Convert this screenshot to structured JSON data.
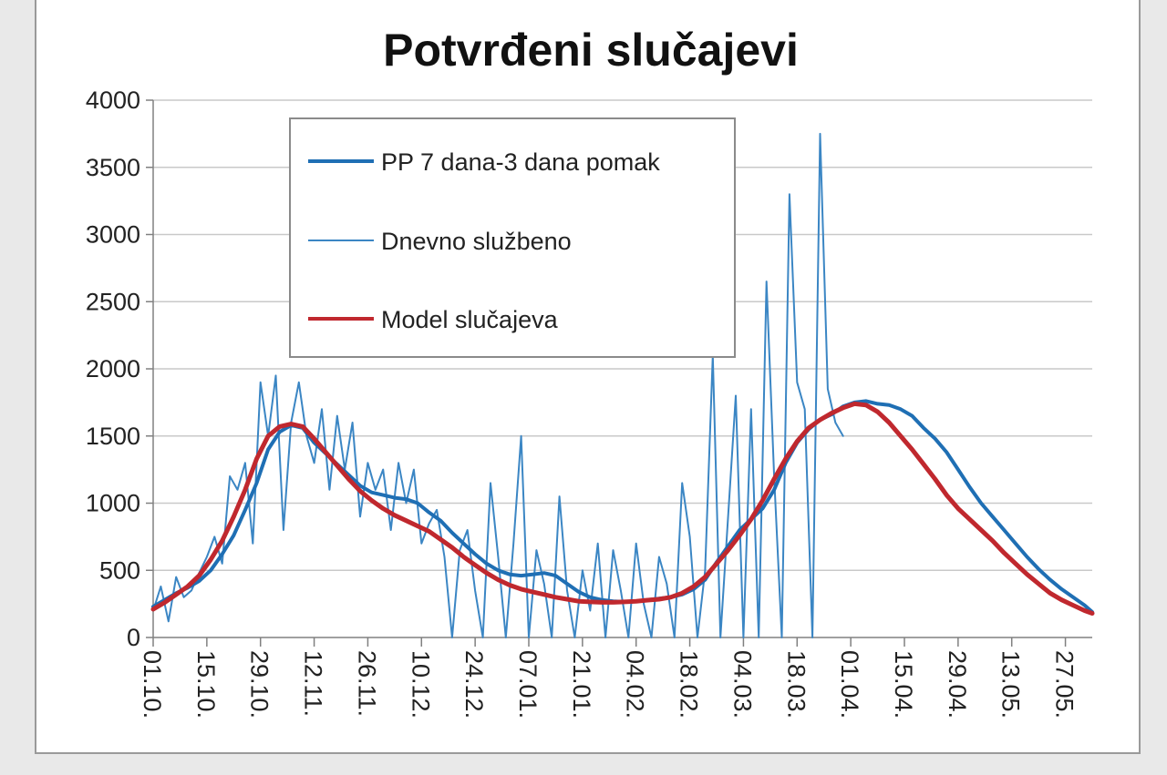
{
  "chart_data": {
    "type": "line",
    "title": "Potvrđeni slučajevi",
    "xlabel": "",
    "ylabel": "",
    "ylim": [
      0,
      4000
    ],
    "yticks": [
      0,
      500,
      1000,
      1500,
      2000,
      2500,
      3000,
      3500,
      4000
    ],
    "xticks": [
      "01.10.",
      "15.10.",
      "29.10.",
      "12.11.",
      "26.11.",
      "10.12.",
      "24.12.",
      "07.01.",
      "21.01.",
      "04.02.",
      "18.02.",
      "04.03.",
      "18.03.",
      "01.04.",
      "15.04.",
      "29.04.",
      "13.05.",
      "27.05."
    ],
    "x_range_days": [
      0,
      245
    ],
    "grid": true,
    "legend_position": "top-left (inside plot)",
    "series": [
      {
        "name": "PP 7 dana-3 dana pomak",
        "color": "#1f6fb4",
        "x": [
          0,
          3,
          6,
          9,
          12,
          15,
          18,
          21,
          24,
          27,
          30,
          33,
          36,
          39,
          42,
          45,
          48,
          51,
          54,
          57,
          60,
          63,
          66,
          69,
          72,
          75,
          78,
          81,
          84,
          87,
          90,
          93,
          96,
          99,
          102,
          105,
          108,
          111,
          114,
          117,
          120,
          123,
          126,
          129,
          132,
          135,
          138,
          141,
          144,
          147,
          150,
          153,
          156,
          159,
          162,
          165,
          168,
          171,
          174,
          177,
          180,
          183,
          186,
          189,
          192,
          195,
          198,
          201,
          204,
          207,
          210,
          213,
          216,
          219,
          222,
          225,
          228,
          231,
          234,
          237,
          240,
          243,
          245
        ],
        "y": [
          230,
          280,
          330,
          370,
          420,
          500,
          620,
          760,
          950,
          1150,
          1400,
          1530,
          1580,
          1560,
          1450,
          1370,
          1290,
          1210,
          1130,
          1080,
          1060,
          1040,
          1030,
          1000,
          930,
          870,
          780,
          700,
          620,
          550,
          500,
          470,
          460,
          470,
          480,
          460,
          400,
          340,
          300,
          280,
          270,
          265,
          270,
          280,
          290,
          300,
          320,
          360,
          430,
          560,
          680,
          800,
          880,
          960,
          1100,
          1300,
          1450,
          1550,
          1620,
          1660,
          1720,
          1750,
          1760,
          1740,
          1730,
          1700,
          1650,
          1560,
          1480,
          1380,
          1250,
          1120,
          1000,
          900,
          800,
          700,
          600,
          510,
          430,
          360,
          300,
          240,
          190
        ]
      },
      {
        "name": "Dnevno službeno",
        "color": "#3b86c4",
        "x": [
          0,
          2,
          4,
          6,
          8,
          10,
          12,
          14,
          16,
          18,
          20,
          22,
          24,
          26,
          28,
          30,
          32,
          34,
          36,
          38,
          40,
          42,
          44,
          46,
          48,
          50,
          52,
          54,
          56,
          58,
          60,
          62,
          64,
          66,
          68,
          70,
          72,
          74,
          76,
          78,
          80,
          82,
          84,
          86,
          88,
          90,
          92,
          94,
          96,
          98,
          100,
          102,
          104,
          106,
          108,
          110,
          112,
          114,
          116,
          118,
          120,
          122,
          124,
          126,
          128,
          130,
          132,
          134,
          136,
          138,
          140,
          142,
          144,
          146,
          148,
          150,
          152,
          154,
          156,
          158,
          160,
          162,
          164,
          166,
          168,
          170,
          172,
          174,
          176,
          178,
          180
        ],
        "y": [
          200,
          380,
          120,
          450,
          300,
          350,
          480,
          600,
          750,
          550,
          1200,
          1100,
          1300,
          700,
          1900,
          1500,
          1950,
          800,
          1600,
          1900,
          1500,
          1300,
          1700,
          1100,
          1650,
          1250,
          1600,
          900,
          1300,
          1100,
          1250,
          800,
          1300,
          1000,
          1250,
          700,
          850,
          950,
          600,
          0,
          650,
          800,
          350,
          0,
          1150,
          600,
          0,
          700,
          1500,
          0,
          650,
          400,
          0,
          1050,
          350,
          0,
          500,
          200,
          700,
          0,
          650,
          350,
          0,
          700,
          250,
          0,
          600,
          400,
          0,
          1150,
          750,
          0,
          500,
          2100,
          0,
          900,
          1800,
          0,
          1700,
          0,
          2650,
          1200,
          0,
          3300,
          1900,
          1700,
          0,
          3750,
          1850,
          1600,
          1500
        ]
      },
      {
        "name": "Model slučajeva",
        "color": "#c0282e",
        "x": [
          0,
          3,
          6,
          9,
          12,
          15,
          18,
          21,
          24,
          27,
          30,
          33,
          36,
          39,
          42,
          45,
          48,
          51,
          54,
          57,
          60,
          63,
          66,
          69,
          72,
          75,
          78,
          81,
          84,
          87,
          90,
          93,
          96,
          99,
          102,
          105,
          108,
          111,
          114,
          117,
          120,
          123,
          126,
          129,
          132,
          135,
          138,
          141,
          144,
          147,
          150,
          153,
          156,
          159,
          162,
          165,
          168,
          171,
          174,
          177,
          180,
          183,
          186,
          189,
          192,
          195,
          198,
          201,
          204,
          207,
          210,
          213,
          216,
          219,
          222,
          225,
          228,
          231,
          234,
          237,
          240,
          243,
          245
        ],
        "y": [
          210,
          260,
          320,
          380,
          460,
          580,
          720,
          900,
          1100,
          1330,
          1500,
          1570,
          1590,
          1570,
          1480,
          1380,
          1280,
          1180,
          1090,
          1020,
          960,
          910,
          870,
          830,
          790,
          730,
          670,
          600,
          540,
          480,
          430,
          390,
          360,
          340,
          320,
          300,
          285,
          270,
          265,
          262,
          262,
          265,
          270,
          278,
          285,
          300,
          330,
          380,
          450,
          550,
          650,
          760,
          880,
          1020,
          1180,
          1330,
          1460,
          1560,
          1620,
          1670,
          1710,
          1740,
          1730,
          1680,
          1600,
          1500,
          1400,
          1290,
          1180,
          1060,
          960,
          880,
          800,
          720,
          630,
          550,
          470,
          400,
          330,
          280,
          240,
          200,
          180
        ]
      }
    ]
  }
}
